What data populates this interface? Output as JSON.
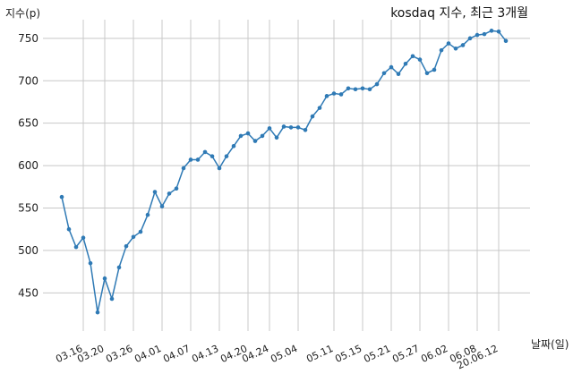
{
  "chart_data": {
    "type": "line",
    "title": "kosdaq 지수, 최근 3개월",
    "ylabel": "지수(p)",
    "xlabel": "날짜(일)",
    "ylim": [
      405,
      772
    ],
    "yticks": [
      450,
      500,
      550,
      600,
      650,
      700,
      750
    ],
    "xticks": [
      "03.16",
      "03.20",
      "03.26",
      "04.01",
      "04.07",
      "04.13",
      "04.20",
      "04.24",
      "05.04",
      "05.11",
      "05.15",
      "05.21",
      "05.27",
      "06.02",
      "06.08",
      "20.06.12"
    ],
    "xtick_index": [
      3,
      6,
      10,
      14,
      18,
      22,
      26,
      29,
      33,
      38,
      42,
      46,
      50,
      54,
      58,
      61
    ],
    "grid": true,
    "color": "#2f7ab5",
    "series": [
      {
        "values": [
          563,
          525,
          504,
          515,
          485,
          427,
          467,
          443,
          480,
          505,
          516,
          522,
          542,
          569,
          552,
          567,
          573,
          597,
          607,
          607,
          616,
          611,
          597,
          611,
          623,
          635,
          638,
          629,
          635,
          644,
          633,
          646,
          645,
          645,
          642,
          658,
          668,
          682,
          685,
          684,
          691,
          690,
          691,
          690,
          696,
          709,
          716,
          708,
          720,
          729,
          725,
          709,
          713,
          736,
          744,
          738,
          742,
          750,
          754,
          755,
          759,
          758,
          747
        ]
      }
    ]
  }
}
